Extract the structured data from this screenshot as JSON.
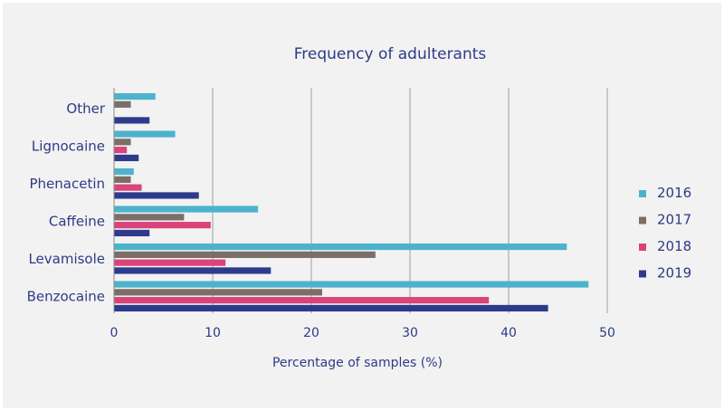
{
  "chart_data": {
    "type": "bar",
    "orientation": "horizontal",
    "title": "Frequency of adulterants",
    "xlabel": "Percentage of samples (%)",
    "ylabel": "",
    "xlim": [
      0,
      50
    ],
    "xticks": [
      0,
      10,
      20,
      30,
      40,
      50
    ],
    "grid": "vertical",
    "legend_position": "right",
    "categories": [
      "Other",
      "Lignocaine",
      "Phenacetin",
      "Caffeine",
      "Levamisole",
      "Benzocaine"
    ],
    "series": [
      {
        "name": "2016",
        "color": "#4db3cc",
        "values": [
          4.2,
          6.2,
          2.0,
          14.6,
          45.9,
          48.1
        ]
      },
      {
        "name": "2017",
        "color": "#7a6e66",
        "values": [
          1.7,
          1.7,
          1.7,
          7.1,
          26.5,
          21.1
        ]
      },
      {
        "name": "2018",
        "color": "#d9447a",
        "values": [
          0,
          1.3,
          2.8,
          9.8,
          11.3,
          38.0
        ]
      },
      {
        "name": "2019",
        "color": "#2d3b8c",
        "values": [
          3.6,
          2.5,
          8.6,
          3.6,
          15.9,
          44.0
        ]
      }
    ]
  }
}
